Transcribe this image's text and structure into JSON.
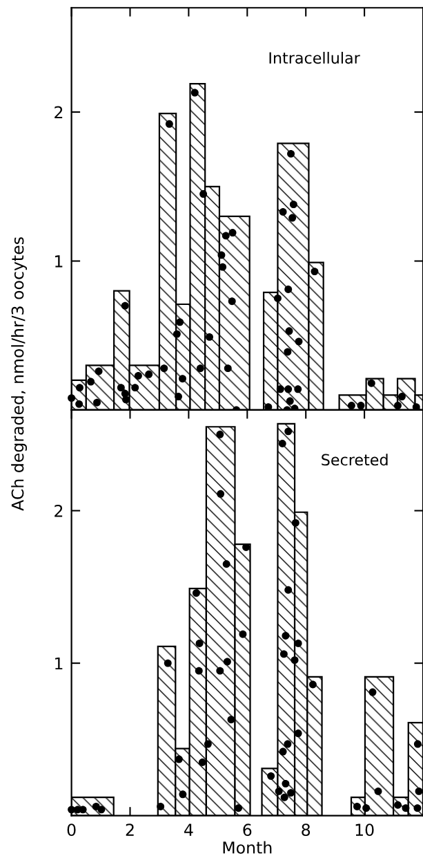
{
  "chart_data": [
    {
      "type": "histogram",
      "title": "Intracellular",
      "ylabel": "ACh degraded, nmol/hr/3 oocytes",
      "xlim": [
        0,
        12
      ],
      "ylim": [
        0,
        2.7
      ],
      "xticks": [
        0,
        2,
        4,
        6,
        8,
        10
      ],
      "yticks": [
        1,
        2
      ],
      "tick_labels": "y",
      "marker": "circle",
      "series": [
        {
          "color": "#000000",
          "bins": [
            0,
            0.5,
            1.45,
            1.98,
            3.0,
            3.57,
            4.05,
            4.56,
            5.05,
            6.08,
            6.56,
            7.04,
            8.1,
            8.6,
            9.14,
            10.06,
            10.65,
            11.13,
            11.73,
            12
          ],
          "values": [
            0.2,
            0.3,
            0.8,
            0.3,
            1.99,
            0.71,
            2.19,
            1.5,
            1.3,
            null,
            0.79,
            1.79,
            0.99,
            null,
            0.1,
            0.21,
            0.1,
            0.21,
            0.1
          ]
        },
        {
          "type": "scatter",
          "color": "#000000",
          "x": [
            0.0,
            0.26,
            0.28,
            0.66,
            0.87,
            0.93,
            1.69,
            1.83,
            1.86,
            1.83,
            2.17,
            2.28,
            2.64,
            3.16,
            3.34,
            3.7,
            3.6,
            3.65,
            3.79,
            4.21,
            4.4,
            4.5,
            4.71,
            5.12,
            5.16,
            5.27,
            5.5,
            5.48,
            5.34,
            5.63,
            6.72,
            7.04,
            7.4,
            7.22,
            7.58,
            7.54,
            7.49,
            8.3,
            7.43,
            7.76,
            7.38,
            7.13,
            7.4,
            7.73,
            7.46,
            7.62,
            7.36,
            9.56,
            9.88,
            10.24,
            11.28,
            11.14,
            11.77
          ],
          "values": [
            0.08,
            0.04,
            0.15,
            0.19,
            0.05,
            0.26,
            0.15,
            0.11,
            0.07,
            0.7,
            0.15,
            0.23,
            0.24,
            0.28,
            1.92,
            0.59,
            0.51,
            0.09,
            0.21,
            2.13,
            0.28,
            1.45,
            0.49,
            1.04,
            0.96,
            1.17,
            1.19,
            0.73,
            0.28,
            0.0,
            0.02,
            0.75,
            0.81,
            1.33,
            1.38,
            1.29,
            1.72,
            0.93,
            0.53,
            0.46,
            0.39,
            0.14,
            0.14,
            0.14,
            0.06,
            0.01,
            0.0,
            0.03,
            0.03,
            0.18,
            0.09,
            0.03,
            0.02
          ]
        }
      ]
    },
    {
      "type": "histogram",
      "title": "Secreted",
      "xlabel": "Month",
      "xlim": [
        0,
        12
      ],
      "ylim": [
        0,
        2.66
      ],
      "xticks": [
        0,
        2,
        4,
        6,
        8,
        10
      ],
      "yticks": [
        1,
        2
      ],
      "marker": "circle",
      "series": [
        {
          "color": "#000000",
          "bins": [
            0,
            1.44,
            2.95,
            3.55,
            4.03,
            4.6,
            5.58,
            6.1,
            6.5,
            7.04,
            7.62,
            8.05,
            8.55,
            9.55,
            10.02,
            10.99,
            11.5,
            12
          ],
          "values": [
            0.12,
            null,
            1.11,
            0.44,
            1.49,
            2.55,
            1.78,
            null,
            0.31,
            2.57,
            1.99,
            0.91,
            null,
            0.12,
            0.91,
            0.12,
            0.61
          ]
        },
        {
          "type": "scatter",
          "color": "#000000",
          "x": [
            0.0,
            0.21,
            0.39,
            0.84,
            1.02,
            3.04,
            3.29,
            3.8,
            3.67,
            4.26,
            4.37,
            4.35,
            4.47,
            4.66,
            5.07,
            5.09,
            5.29,
            5.32,
            5.07,
            5.45,
            5.7,
            5.85,
            5.96,
            6.81,
            7.08,
            7.31,
            7.27,
            7.49,
            7.4,
            7.2,
            7.65,
            7.4,
            7.31,
            7.74,
            7.25,
            7.62,
            8.24,
            7.74,
            7.38,
            7.22,
            9.75,
            10.06,
            10.28,
            10.47,
            11.14,
            11.41,
            11.82,
            11.86,
            11.81
          ],
          "values": [
            0.04,
            0.04,
            0.04,
            0.06,
            0.04,
            0.06,
            1.0,
            0.14,
            0.37,
            1.46,
            1.13,
            0.95,
            0.35,
            0.47,
            2.5,
            2.11,
            1.65,
            1.01,
            0.95,
            0.63,
            0.05,
            1.19,
            1.76,
            0.26,
            0.16,
            0.21,
            0.12,
            0.15,
            2.52,
            2.44,
            1.92,
            1.48,
            1.18,
            1.13,
            1.06,
            1.02,
            0.86,
            0.54,
            0.47,
            0.42,
            0.06,
            0.05,
            0.81,
            0.16,
            0.07,
            0.05,
            0.47,
            0.16,
            0.05
          ]
        }
      ]
    }
  ]
}
